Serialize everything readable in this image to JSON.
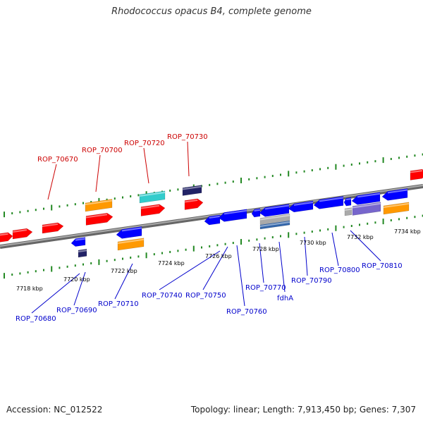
{
  "title": "Rhodococcus opacus B4, complete genome",
  "footer": {
    "accession": "Accession: NC_012522",
    "summary": "Topology: linear; Length: 7,913,450 bp; Genes: 7,307"
  },
  "colors": {
    "forward_gene": "#ff0000",
    "reverse_gene": "#0000ff",
    "forward_label": "#cc0000",
    "reverse_label": "#0000cc",
    "orange_feature": "#ff9900",
    "cyan_feature": "#33cccc",
    "tick": "#228822",
    "backbone": "#888888"
  },
  "scale_labels": [
    "7718 kbp",
    "7720 kbp",
    "7722 kbp",
    "7724 kbp",
    "7726 kbp",
    "7728 kbp",
    "7730 kbp",
    "7732 kbp",
    "7734 kbp"
  ],
  "forward_gene_labels": [
    "ROP_70670",
    "ROP_70700",
    "ROP_70720",
    "ROP_70730"
  ],
  "reverse_gene_labels": [
    "ROP_70680",
    "ROP_70690",
    "ROP_70710",
    "ROP_70740",
    "ROP_70750",
    "ROP_70760",
    "ROP_70770",
    "fdhA",
    "ROP_70790",
    "ROP_70800",
    "ROP_70810"
  ]
}
